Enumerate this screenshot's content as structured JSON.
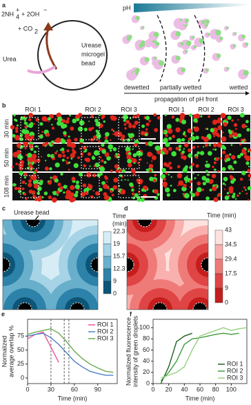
{
  "panel_a": {
    "label": "a",
    "reaction": {
      "ammonium": "2NH",
      "ammonium_sub": "4",
      "ammonium_sup": "+",
      "hydroxide": "+ 2OH",
      "hydroxide_sup": "−",
      "co2": "+ CO",
      "co2_sub": "2"
    },
    "substrate": "Urea",
    "bead": [
      "Urease",
      "microgel",
      "bead"
    ],
    "ph": "pH",
    "states": [
      "dewetted",
      "partially wetted",
      "wetted"
    ],
    "front": "propagation of pH front"
  },
  "panel_b": {
    "label": "b",
    "rois": [
      "ROI 1",
      "ROI 2",
      "ROI 3"
    ],
    "zoom_rois": [
      "ROI 1",
      "ROI 2",
      "ROI 3"
    ],
    "times": [
      "30 min",
      "50 min",
      "108 min"
    ]
  },
  "panel_c": {
    "label": "c",
    "annotation": "Urease bead",
    "colorbar_title": [
      "Time",
      "(min)"
    ],
    "levels": [
      22.3,
      19,
      15.7,
      12.3,
      9,
      0
    ],
    "colors": [
      "#d6edf5",
      "#a6d3e5",
      "#68afcc",
      "#2c82a9",
      "#0d5577"
    ]
  },
  "panel_d": {
    "label": "d",
    "colorbar_title": "Time (min)",
    "levels": [
      43,
      34.5,
      29.4,
      17.5,
      9,
      0
    ],
    "colors": [
      "#fde2df",
      "#f8b1ae",
      "#ef7b78",
      "#df4545",
      "#c51d1d"
    ]
  },
  "chart_data": [
    {
      "type": "line",
      "label": "e",
      "ylabel": [
        "Normalized",
        "average overlap %"
      ],
      "xlabel": "Time (min)",
      "x": [
        0,
        10,
        20,
        30,
        40,
        50,
        60,
        70,
        80,
        90,
        100,
        110
      ],
      "xlim": [
        0,
        115
      ],
      "ylim": [
        -10,
        105
      ],
      "xticks": [
        0,
        30,
        60,
        90
      ],
      "yticks": [
        0,
        25,
        50,
        75
      ],
      "vlines": [
        30,
        47,
        53
      ],
      "legend": "upper right",
      "series": [
        {
          "name": "ROI 1",
          "color": "#f0509a",
          "values": [
            70,
            78,
            82,
            55,
            28,
            null,
            null,
            null,
            null,
            null,
            null,
            null
          ]
        },
        {
          "name": "ROI 2",
          "color": "#4d7fc4",
          "values": [
            75,
            78,
            80,
            72,
            60,
            45,
            30,
            20,
            12,
            8,
            5,
            5
          ]
        },
        {
          "name": "ROI 3",
          "color": "#6aa84f",
          "values": [
            78,
            82,
            85,
            88,
            80,
            65,
            48,
            35,
            25,
            18,
            12,
            10
          ]
        }
      ]
    },
    {
      "type": "line",
      "label": "f",
      "ylabel": [
        "Normalized fluorescence",
        "intensity of green droplets"
      ],
      "xlabel": "Time (min)",
      "x": [
        10,
        20,
        30,
        40,
        50,
        60,
        70,
        80,
        90,
        100,
        110,
        120
      ],
      "xlim": [
        0,
        120
      ],
      "ylim": [
        0,
        115
      ],
      "xticks": [
        0,
        20,
        40,
        60,
        80,
        100
      ],
      "yticks": [
        0,
        20,
        40,
        60,
        80,
        100
      ],
      "legend": "lower right",
      "series": [
        {
          "name": "ROI 1",
          "color": "#1f5f1f",
          "values": [
            0,
            30,
            75,
            85,
            90,
            null,
            null,
            null,
            null,
            null,
            null,
            null
          ]
        },
        {
          "name": "ROI 2",
          "color": "#3f9a3f",
          "values": [
            5,
            20,
            40,
            70,
            80,
            82,
            85,
            88,
            90,
            88,
            90,
            null
          ]
        },
        {
          "name": "ROI 3",
          "color": "#92d07a",
          "values": [
            10,
            15,
            20,
            30,
            60,
            85,
            90,
            95,
            100,
            95,
            98,
            100
          ]
        }
      ]
    }
  ]
}
